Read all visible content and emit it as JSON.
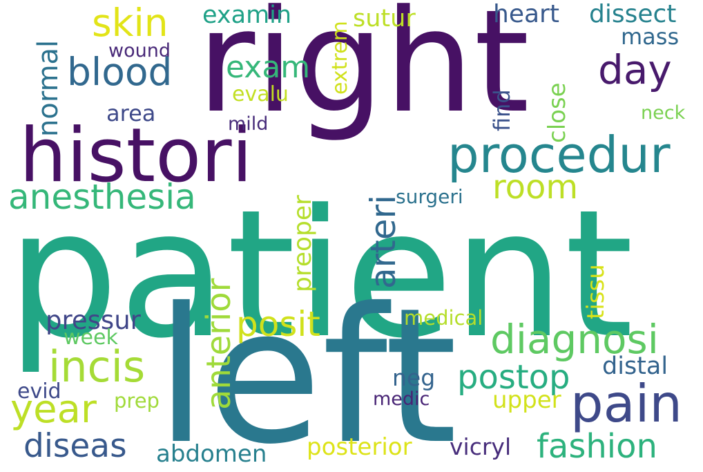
{
  "cloud": {
    "words": [
      {
        "text": "patient",
        "color": "#21a685"
      },
      {
        "text": "left",
        "color": "#2a788e"
      },
      {
        "text": "right",
        "color": "#471164"
      },
      {
        "text": "histori",
        "color": "#471164"
      },
      {
        "text": "procedur",
        "color": "#25868e"
      },
      {
        "text": "diagnosi",
        "color": "#5ec962"
      },
      {
        "text": "pain",
        "color": "#3e4989"
      },
      {
        "text": "anesthesia",
        "color": "#35b779"
      },
      {
        "text": "blood",
        "color": "#31688e"
      },
      {
        "text": "skin",
        "color": "#e2e418"
      },
      {
        "text": "day",
        "color": "#481a6c"
      },
      {
        "text": "exam",
        "color": "#35b779"
      },
      {
        "text": "incis",
        "color": "#a5db36"
      },
      {
        "text": "year",
        "color": "#bddf26"
      },
      {
        "text": "posit",
        "color": "#d0e11c"
      },
      {
        "text": "postop",
        "color": "#27ad81"
      },
      {
        "text": "room",
        "color": "#bddf26"
      },
      {
        "text": "anterior",
        "color": "#9fda3a"
      },
      {
        "text": "arteri",
        "color": "#31688e"
      },
      {
        "text": "fashion",
        "color": "#2db27d"
      },
      {
        "text": "diseas",
        "color": "#38598c"
      },
      {
        "text": "pressur",
        "color": "#404688"
      },
      {
        "text": "normal",
        "color": "#2c728e"
      },
      {
        "text": "sutur",
        "color": "#bddf26"
      },
      {
        "text": "examin",
        "color": "#1fa187"
      },
      {
        "text": "heart",
        "color": "#38598c"
      },
      {
        "text": "dissect",
        "color": "#26828e"
      },
      {
        "text": "mass",
        "color": "#31688e"
      },
      {
        "text": "wound",
        "color": "#482878"
      },
      {
        "text": "area",
        "color": "#3e4989"
      },
      {
        "text": "mild",
        "color": "#472c7a"
      },
      {
        "text": "evalu",
        "color": "#c2df23"
      },
      {
        "text": "extrem",
        "color": "#d0e11c"
      },
      {
        "text": "find",
        "color": "#3b528b"
      },
      {
        "text": "close",
        "color": "#7ad151"
      },
      {
        "text": "neck",
        "color": "#7ad151"
      },
      {
        "text": "surgeri",
        "color": "#2c728e"
      },
      {
        "text": "preoper",
        "color": "#b5de2b"
      },
      {
        "text": "tissu",
        "color": "#d8e219"
      },
      {
        "text": "medical",
        "color": "#b5de2b"
      },
      {
        "text": "week",
        "color": "#5ec962"
      },
      {
        "text": "neg",
        "color": "#33638d"
      },
      {
        "text": "distal",
        "color": "#33638d"
      },
      {
        "text": "upper",
        "color": "#d2e21b"
      },
      {
        "text": "medic",
        "color": "#482475"
      },
      {
        "text": "evid",
        "color": "#3e4989"
      },
      {
        "text": "prep",
        "color": "#a0da39"
      },
      {
        "text": "abdomen",
        "color": "#27808e"
      },
      {
        "text": "posterior",
        "color": "#dde318"
      },
      {
        "text": "vicryl",
        "color": "#472d7b"
      }
    ]
  }
}
